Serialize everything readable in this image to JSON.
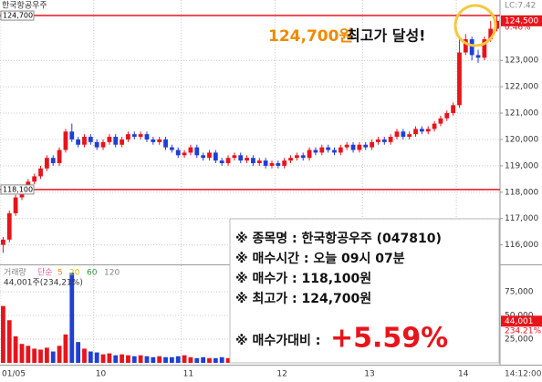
{
  "chart_data": {
    "type": "candlestick",
    "title": "한국항공우주",
    "lc": "LC:7.42",
    "categories": [
      "01/05",
      null,
      null,
      null,
      null,
      null,
      null,
      null,
      null,
      null,
      null,
      null,
      null,
      null,
      null,
      "10",
      null,
      null,
      null,
      null,
      null,
      null,
      null,
      null,
      null,
      null,
      null,
      null,
      null,
      "11",
      null,
      null,
      null,
      null,
      null,
      null,
      null,
      null,
      null,
      null,
      null,
      null,
      null,
      null,
      "12",
      null,
      null,
      null,
      null,
      null,
      null,
      null,
      null,
      null,
      null,
      null,
      null,
      null,
      "13",
      null,
      null,
      null,
      null,
      null,
      null,
      null,
      null,
      null,
      null,
      null,
      null,
      null,
      null,
      "14",
      null,
      null,
      null,
      null,
      null,
      null
    ],
    "time_label": "14:12:00",
    "open": [
      116000,
      116200,
      117200,
      117800,
      118100,
      118400,
      118600,
      118900,
      119300,
      119100,
      119600,
      120300,
      120000,
      119800,
      120100,
      119900,
      119700,
      119900,
      120100,
      119800,
      120000,
      120200,
      120100,
      120200,
      120000,
      119900,
      120000,
      119700,
      119600,
      119400,
      119500,
      119700,
      119400,
      119300,
      119500,
      119200,
      119100,
      119300,
      119400,
      119200,
      119300,
      119100,
      119200,
      119000,
      119100,
      119000,
      119200,
      119300,
      119400,
      119300,
      119600,
      119500,
      119700,
      119600,
      119500,
      119700,
      119800,
      119600,
      119800,
      119700,
      119900,
      120000,
      119900,
      120100,
      120300,
      120100,
      120200,
      120400,
      120300,
      120400,
      120600,
      120800,
      121000,
      121300,
      123300,
      123800,
      123200,
      123100,
      123800,
      124200
    ],
    "high": [
      116300,
      117300,
      117900,
      118200,
      118500,
      118700,
      119000,
      119400,
      119400,
      119700,
      120400,
      120600,
      120100,
      120200,
      120200,
      120000,
      120000,
      120200,
      120200,
      120100,
      120300,
      120300,
      120300,
      120300,
      120100,
      120100,
      120100,
      119800,
      119700,
      119600,
      119800,
      119800,
      119500,
      119600,
      119600,
      119300,
      119400,
      119500,
      119500,
      119400,
      119400,
      119300,
      119300,
      119200,
      119200,
      119300,
      119400,
      119500,
      119500,
      119700,
      119700,
      119800,
      119800,
      119700,
      119800,
      119900,
      119900,
      119900,
      119900,
      120000,
      120100,
      120100,
      120200,
      120400,
      120400,
      120300,
      120500,
      120500,
      120500,
      120700,
      120900,
      121100,
      121400,
      123800,
      124000,
      123900,
      123400,
      123900,
      124500,
      124700
    ],
    "low": [
      115700,
      116100,
      117100,
      117700,
      118000,
      118300,
      118500,
      118800,
      119000,
      119000,
      119500,
      119900,
      119700,
      119700,
      119800,
      119600,
      119600,
      119800,
      119700,
      119700,
      119900,
      120000,
      120000,
      119900,
      119800,
      119800,
      119600,
      119500,
      119300,
      119300,
      119400,
      119300,
      119200,
      119200,
      119100,
      119000,
      119000,
      119200,
      119100,
      119100,
      119000,
      119000,
      118900,
      118900,
      118900,
      118900,
      119100,
      119200,
      119200,
      119200,
      119400,
      119400,
      119500,
      119400,
      119400,
      119600,
      119500,
      119500,
      119600,
      119600,
      119800,
      119800,
      119800,
      120000,
      120000,
      120000,
      120100,
      120200,
      120200,
      120300,
      120500,
      120700,
      120900,
      121200,
      123200,
      123000,
      122900,
      123000,
      123700,
      124100
    ],
    "close": [
      116200,
      117200,
      117800,
      118100,
      118400,
      118600,
      118900,
      119300,
      119100,
      119600,
      120300,
      120000,
      119800,
      120100,
      119900,
      119700,
      119900,
      120100,
      119800,
      120000,
      120200,
      120100,
      120200,
      120000,
      119900,
      120000,
      119700,
      119600,
      119400,
      119500,
      119700,
      119400,
      119300,
      119500,
      119200,
      119100,
      119300,
      119400,
      119200,
      119300,
      119100,
      119200,
      119000,
      119100,
      119000,
      119200,
      119300,
      119400,
      119300,
      119600,
      119500,
      119700,
      119600,
      119500,
      119700,
      119800,
      119600,
      119800,
      119700,
      119900,
      120000,
      119900,
      120100,
      120300,
      120100,
      120200,
      120400,
      120300,
      120400,
      120600,
      120800,
      121000,
      121300,
      123300,
      123800,
      123200,
      123100,
      123800,
      124200,
      124500
    ],
    "up_color": "#e8141b",
    "down_color": "#1f3fd6",
    "ylim": [
      115260,
      125290
    ],
    "yticks": [
      {
        "value": 116000,
        "label": "116,000"
      },
      {
        "value": 117000,
        "label": "117,000"
      },
      {
        "value": 118000,
        "label": "118,000"
      },
      {
        "value": 119000,
        "label": "119,000"
      },
      {
        "value": 120000,
        "label": "120,000"
      },
      {
        "value": 121000,
        "label": "121,000"
      },
      {
        "value": 122000,
        "label": "122,000"
      },
      {
        "value": 123000,
        "label": "123,000"
      }
    ],
    "grid": true,
    "hlines": [
      {
        "value": 124700,
        "label": "124,700"
      },
      {
        "value": 118100,
        "label": "118,100"
      }
    ],
    "hline_color": "#e8141b",
    "last_price": {
      "value": 124500,
      "label": "124,500"
    },
    "change": "0.46%",
    "annotation": {
      "highlight": "124,700원",
      "text": "최고가 달성!"
    },
    "info_box": {
      "lines": [
        "※ 종목명 : 한국항공우주 (047810)",
        "※ 매수시간 : 오늘 09시 07분",
        "※ 매수가 : 118,100원",
        "※ 최고가 : 124,700원"
      ],
      "compare_label": "※ 매수가대비 :",
      "compare_value": "+5.59%"
    },
    "volume": {
      "name": "거래량",
      "ma_type": "단순",
      "ma_periods": [
        5,
        20,
        60,
        120
      ],
      "ma_colors": [
        "#f08a00",
        "#d8c400",
        "#2a9d3a",
        "#888888"
      ],
      "info": "44,001주(234,21%)",
      "values": [
        60000,
        45000,
        28000,
        20000,
        18000,
        15000,
        14000,
        16000,
        12000,
        18000,
        30000,
        95000,
        22000,
        15000,
        12000,
        11000,
        9000,
        10000,
        8000,
        9000,
        8000,
        7000,
        8000,
        7000,
        6000,
        7000,
        6000,
        6000,
        7000,
        8000,
        6000,
        5000,
        6000,
        5000,
        5000,
        6000,
        5000,
        4000,
        5000,
        4000,
        5000,
        6000,
        5000,
        4000,
        5000,
        4000,
        5000,
        4000,
        5000,
        6000,
        5000,
        4000,
        5000,
        4000,
        5000,
        4000,
        5000,
        4000,
        6000,
        5000,
        4000,
        5000,
        6000,
        5000,
        4000,
        5000,
        6000,
        5000,
        6000,
        7000,
        8000,
        9000,
        12000,
        30000,
        20000,
        14000,
        10000,
        12000,
        15000,
        9000
      ],
      "ylim": [
        0,
        102000
      ],
      "yticks": [
        {
          "value": 25000,
          "label": "25,000"
        },
        {
          "value": 50000,
          "label": "50,000"
        },
        {
          "value": 75000,
          "label": "75,000"
        }
      ],
      "current": {
        "value": 44001,
        "label": "44,001"
      },
      "ratio": "234.21%"
    }
  }
}
